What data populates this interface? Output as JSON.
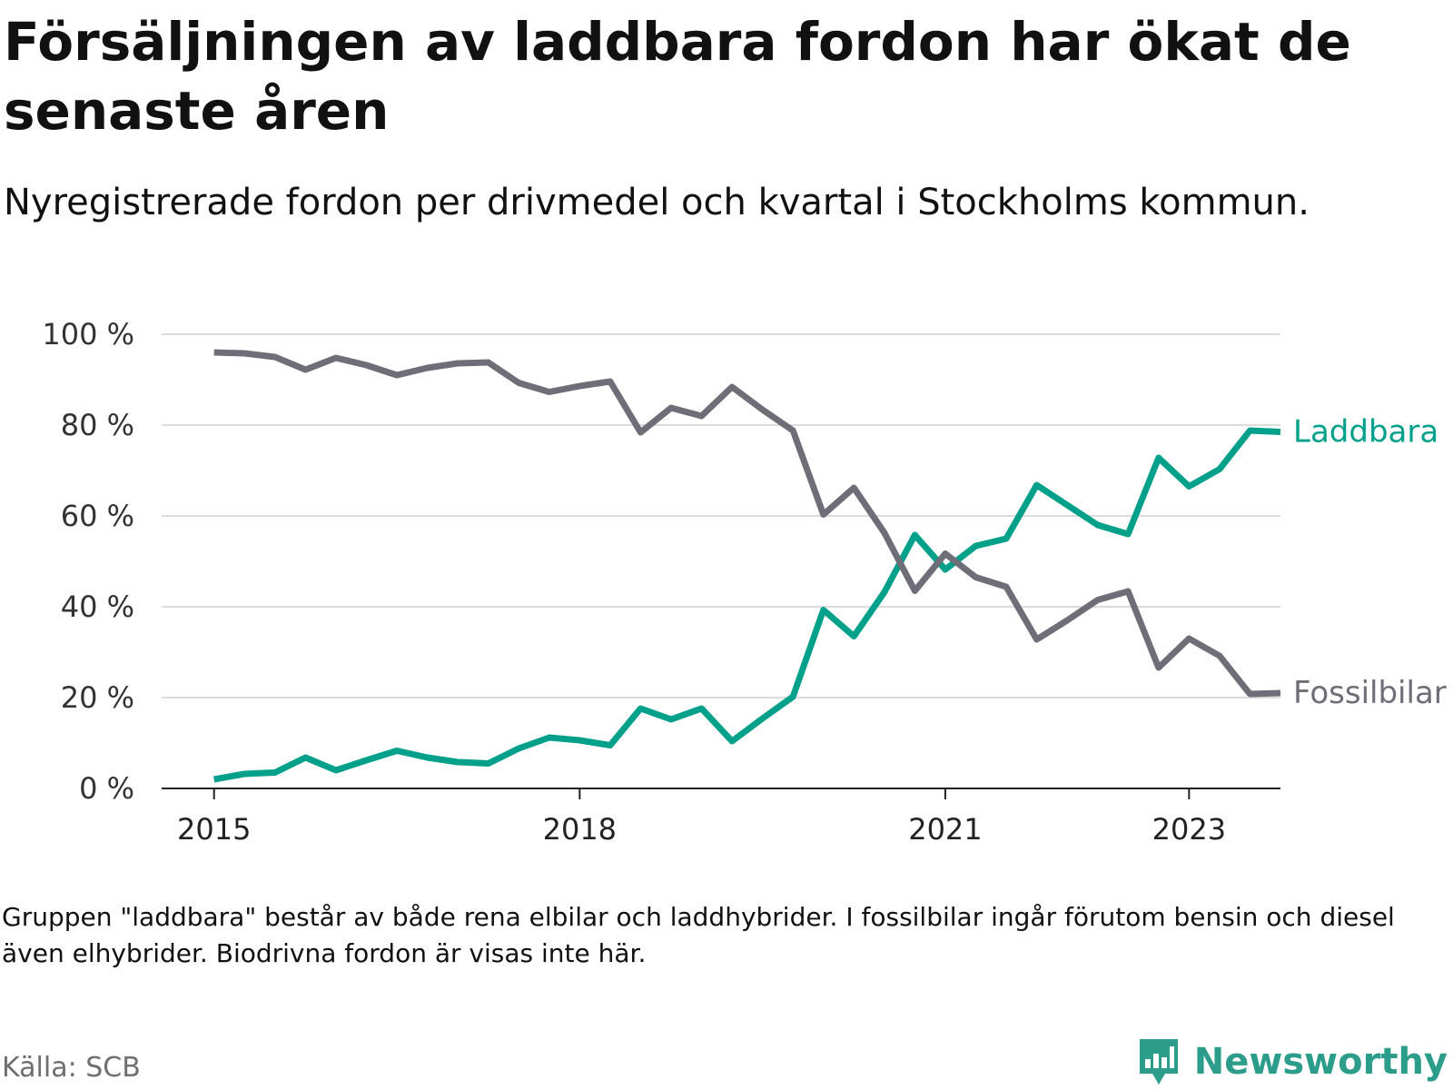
{
  "title": "Försäljningen av laddbara fordon har ökat de senaste åren",
  "subtitle": "Nyregistrerade fordon per drivmedel och kvartal i Stockholms kommun.",
  "note": "Gruppen \"laddbara\" består av både rena elbilar och laddhybrider. I fossilbilar ingår förutom bensin och diesel även elhybrider. Biodrivna fordon är visas inte här.",
  "source": "Källa: SCB",
  "brand": "Newsworthy",
  "colors": {
    "laddbara": "#00a08a",
    "fossil": "#6e6e78",
    "brand": "#2d9d8b"
  },
  "chart_data": {
    "type": "line",
    "title": "Försäljningen av laddbara fordon har ökat de senaste åren",
    "xlabel": "",
    "ylabel": "",
    "ylim": [
      0,
      100
    ],
    "yticks": [
      0,
      20,
      40,
      60,
      80,
      100
    ],
    "ytick_labels": [
      "0 %",
      "20 %",
      "40 %",
      "60 %",
      "80 %",
      "100 %"
    ],
    "xticks": [
      2015,
      2018,
      2021,
      2023
    ],
    "xtick_labels": [
      "2015",
      "2018",
      "2021",
      "2023"
    ],
    "xlim": [
      2014.57,
      2023.75
    ],
    "grid": true,
    "x": [
      2015.0,
      2015.25,
      2015.5,
      2015.75,
      2016.0,
      2016.25,
      2016.5,
      2016.75,
      2017.0,
      2017.25,
      2017.5,
      2017.75,
      2018.0,
      2018.25,
      2018.5,
      2018.75,
      2019.0,
      2019.25,
      2019.5,
      2019.75,
      2020.0,
      2020.25,
      2020.5,
      2020.75,
      2021.0,
      2021.25,
      2021.5,
      2021.75,
      2022.0,
      2022.25,
      2022.5,
      2022.75,
      2023.0,
      2023.25,
      2023.5,
      2023.75
    ],
    "series": [
      {
        "name": "Laddbara",
        "values": [
          2,
          3.2,
          3.5,
          6.8,
          4,
          6.2,
          8.3,
          6.8,
          5.8,
          5.5,
          8.8,
          11.2,
          10.6,
          9.5,
          17.6,
          15.2,
          17.6,
          10.4,
          15.4,
          20.2,
          39.3,
          33.5,
          43.2,
          55.8,
          48.2,
          53.4,
          55,
          66.8,
          62.4,
          58,
          56,
          72.8,
          66.5,
          70.3,
          78.8,
          78.5
        ]
      },
      {
        "name": "Fossilbilar",
        "values": [
          96,
          95.8,
          95,
          92.2,
          94.8,
          93.2,
          91,
          92.6,
          93.6,
          93.8,
          89.3,
          87.3,
          88.6,
          89.6,
          78.4,
          83.8,
          82,
          88.4,
          83.4,
          78.8,
          60.3,
          66.2,
          56.3,
          43.5,
          51.7,
          46.5,
          44.4,
          32.8,
          37,
          41.5,
          43.4,
          26.6,
          33,
          29.2,
          20.8,
          21
        ]
      }
    ]
  }
}
